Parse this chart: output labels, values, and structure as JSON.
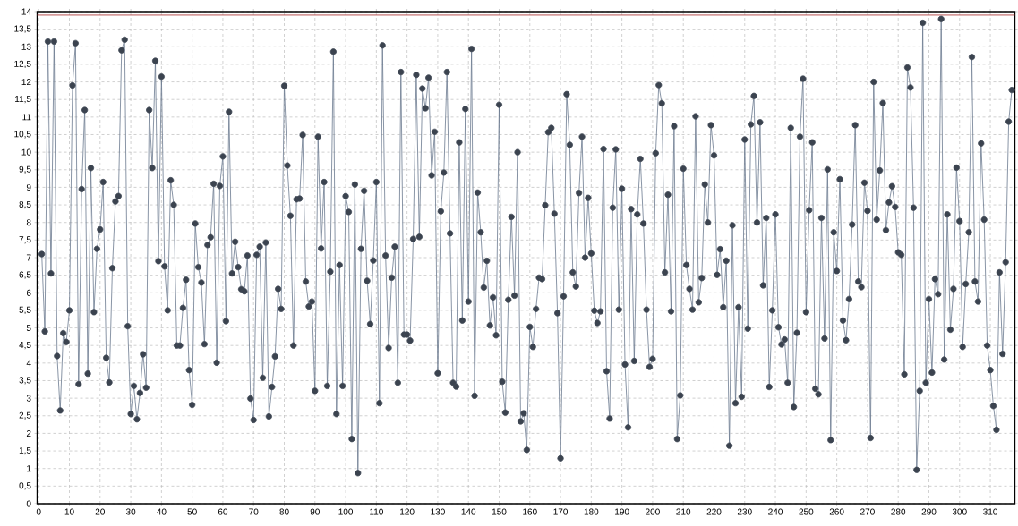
{
  "chart_data": {
    "type": "line",
    "x": [
      1,
      2,
      3,
      4,
      5,
      6,
      7,
      8,
      9,
      10,
      11,
      12,
      13,
      14,
      15,
      16,
      17,
      18,
      19,
      20,
      21,
      22,
      23,
      24,
      25,
      26,
      27,
      28,
      29,
      30,
      31,
      32,
      33,
      34,
      35,
      36,
      37,
      38,
      39,
      40,
      41,
      42,
      43,
      44,
      45,
      46,
      47,
      48,
      49,
      50,
      51,
      52,
      53,
      54,
      55,
      56,
      57,
      58,
      59,
      60,
      61,
      62,
      63,
      64,
      65,
      66,
      67,
      68,
      69,
      70,
      71,
      72,
      73,
      74,
      75,
      76,
      77,
      78,
      79,
      80,
      81,
      82,
      83,
      84,
      85,
      86,
      87,
      88,
      89,
      90,
      91,
      92,
      93,
      94,
      95,
      96,
      97,
      98,
      99,
      100,
      101,
      102,
      103,
      104,
      105,
      106,
      107,
      108,
      109,
      110,
      111,
      112,
      113,
      114,
      115,
      116,
      117,
      118,
      119,
      120,
      121,
      122,
      123,
      124,
      125,
      126,
      127,
      128,
      129,
      130,
      131,
      132,
      133,
      134,
      135,
      136,
      137,
      138,
      139,
      140,
      141,
      142,
      143,
      144,
      145,
      146,
      147,
      148,
      149,
      150,
      151,
      152,
      153,
      154,
      155,
      156,
      157,
      158,
      159,
      160,
      161,
      162,
      163,
      164,
      165,
      166,
      167,
      168,
      169,
      170,
      171,
      172,
      173,
      174,
      175,
      176,
      177,
      178,
      179,
      180,
      181,
      182,
      183,
      184,
      185,
      186,
      187,
      188,
      189,
      190,
      191,
      192,
      193,
      194,
      195,
      196,
      197,
      198,
      199,
      200,
      201,
      202,
      203,
      204,
      205,
      206,
      207,
      208,
      209,
      210,
      211,
      212,
      213,
      214,
      215,
      216,
      217,
      218,
      219,
      220,
      221,
      222,
      223,
      224,
      225,
      226,
      227,
      228,
      229,
      230,
      231,
      232,
      233,
      234,
      235,
      236,
      237,
      238,
      239,
      240,
      241,
      242,
      243,
      244,
      245,
      246,
      247,
      248,
      249,
      250,
      251,
      252,
      253,
      254,
      255,
      256,
      257,
      258,
      259,
      260,
      261,
      262,
      263,
      264,
      265,
      266,
      267,
      268,
      269,
      270,
      271,
      272,
      273,
      274,
      275,
      276,
      277,
      278,
      279,
      280,
      281,
      282,
      283,
      284,
      285,
      286,
      287,
      288,
      289,
      290,
      291,
      292,
      293,
      294,
      295,
      296,
      297,
      298,
      299,
      300,
      301,
      302,
      303,
      304,
      305,
      306,
      307,
      308,
      309,
      310,
      311,
      312,
      313,
      314,
      315,
      316,
      317
    ],
    "series": [
      {
        "color": "#6b7a8f",
        "values": [
          7.1,
          4.9,
          13.15,
          6.55,
          13.15,
          4.2,
          2.65,
          4.85,
          4.6,
          5.5,
          11.9,
          13.1,
          3.4,
          8.95,
          11.2,
          3.7,
          9.55,
          5.45,
          7.25,
          7.8,
          9.15,
          4.15,
          3.45,
          6.7,
          8.6,
          8.75,
          12.9,
          13.2,
          5.05,
          2.55,
          3.35,
          2.4,
          3.15,
          4.25,
          3.3,
          11.2,
          9.55,
          12.6,
          6.9,
          12.15,
          6.75,
          5.5,
          9.2,
          8.5,
          4.5,
          4.5,
          5.57,
          6.37,
          3.8,
          2.81,
          7.97,
          6.73,
          6.29,
          4.54,
          7.36,
          7.58,
          9.1,
          4.01,
          9.04,
          9.88,
          5.19,
          11.15,
          6.55,
          7.45,
          6.73,
          6.1,
          6.04,
          7.06,
          2.99,
          2.38,
          7.08,
          7.31,
          3.58,
          7.43,
          2.48,
          3.32,
          4.19,
          6.11,
          5.54,
          11.89,
          9.62,
          8.19,
          4.5,
          8.66,
          8.68,
          10.49,
          6.32,
          5.61,
          5.75,
          3.21,
          10.44,
          7.26,
          9.15,
          3.35,
          6.6,
          12.86,
          2.55,
          6.79,
          3.35,
          8.75,
          8.3,
          1.84,
          9.08,
          0.87,
          7.25,
          8.9,
          6.34,
          5.11,
          6.92,
          9.15,
          2.86,
          13.04,
          7.06,
          4.43,
          6.43,
          7.31,
          3.44,
          12.28,
          4.81,
          4.81,
          4.64,
          7.53,
          12.2,
          7.59,
          11.81,
          11.25,
          12.12,
          9.34,
          10.58,
          3.71,
          8.32,
          9.42,
          12.28,
          7.69,
          3.44,
          3.33,
          10.28,
          5.21,
          11.23,
          5.75,
          12.94,
          3.07,
          8.85,
          7.72,
          6.15,
          6.91,
          5.07,
          5.87,
          4.79,
          11.35,
          3.47,
          2.59,
          5.8,
          8.16,
          5.92,
          10.0,
          2.34,
          2.57,
          1.53,
          5.03,
          4.46,
          5.54,
          6.43,
          6.39,
          8.49,
          10.57,
          10.69,
          8.25,
          5.42,
          1.29,
          5.9,
          11.65,
          10.21,
          6.58,
          6.18,
          8.84,
          10.44,
          7.0,
          8.7,
          7.12,
          5.49,
          5.14,
          5.47,
          10.09,
          3.77,
          2.42,
          8.42,
          10.08,
          5.52,
          8.96,
          3.96,
          2.17,
          8.38,
          4.06,
          8.23,
          9.81,
          7.97,
          5.52,
          3.89,
          4.12,
          9.97,
          11.91,
          11.39,
          6.58,
          8.79,
          5.47,
          10.74,
          1.84,
          3.08,
          9.53,
          6.79,
          6.11,
          5.52,
          11.02,
          5.73,
          6.42,
          9.08,
          8.0,
          10.77,
          9.91,
          6.51,
          7.24,
          5.59,
          6.91,
          1.65,
          7.92,
          2.86,
          5.59,
          3.04,
          10.36,
          4.98,
          10.79,
          11.6,
          8.0,
          10.85,
          6.21,
          8.13,
          3.32,
          5.5,
          8.23,
          5.02,
          4.53,
          4.67,
          3.44,
          10.69,
          2.75,
          4.86,
          10.44,
          12.09,
          5.45,
          8.35,
          10.28,
          3.27,
          3.11,
          8.13,
          4.7,
          9.51,
          1.81,
          7.72,
          6.62,
          9.23,
          5.21,
          4.65,
          5.82,
          7.94,
          10.77,
          6.32,
          6.16,
          9.13,
          8.33,
          1.87,
          12.0,
          8.08,
          9.48,
          11.4,
          7.78,
          8.57,
          9.03,
          8.44,
          7.15,
          7.08,
          3.68,
          12.41,
          11.84,
          8.42,
          0.96,
          3.21,
          13.68,
          3.44,
          5.82,
          3.73,
          6.39,
          5.96,
          13.79,
          4.1,
          8.23,
          4.95,
          6.11,
          9.56,
          8.04,
          4.46,
          6.25,
          7.72,
          12.71,
          6.32,
          5.75,
          10.25,
          8.08,
          4.5,
          3.8,
          2.78,
          2.1,
          6.58,
          4.26,
          6.87,
          10.87,
          11.77
        ]
      }
    ],
    "xlim": [
      -0.5,
      318
    ],
    "ylim": [
      0,
      14
    ],
    "xticks": [
      0,
      10,
      20,
      30,
      40,
      50,
      60,
      70,
      80,
      90,
      100,
      110,
      120,
      130,
      140,
      150,
      160,
      170,
      180,
      190,
      200,
      210,
      220,
      230,
      240,
      250,
      260,
      270,
      280,
      290,
      300,
      310
    ],
    "yticks": [
      0,
      {
        "value": 0.5,
        "label": "0,5"
      },
      1,
      {
        "value": 1.5,
        "label": "1,5"
      },
      2,
      {
        "value": 2.5,
        "label": "2,5"
      },
      3,
      {
        "value": 3.5,
        "label": "3,5"
      },
      4,
      {
        "value": 4.5,
        "label": "4,5"
      },
      5,
      {
        "value": 5.5,
        "label": "5,5"
      },
      6,
      {
        "value": 6.5,
        "label": "6,5"
      },
      7,
      {
        "value": 7.5,
        "label": "7,5"
      },
      8,
      {
        "value": 8.5,
        "label": "8,5"
      },
      9,
      {
        "value": 9.5,
        "label": "9,5"
      },
      10,
      {
        "value": 10.5,
        "label": "10,5"
      },
      11,
      {
        "value": 11.5,
        "label": "11,5"
      },
      12,
      {
        "value": 12.5,
        "label": "12,5"
      },
      13,
      {
        "value": 13.5,
        "label": "13,5"
      },
      14
    ],
    "ref_lines": [
      {
        "axis": "y",
        "value": 13.9,
        "color": "#b04040"
      }
    ],
    "grid": true,
    "marker": "circle",
    "line_style": "solid"
  }
}
